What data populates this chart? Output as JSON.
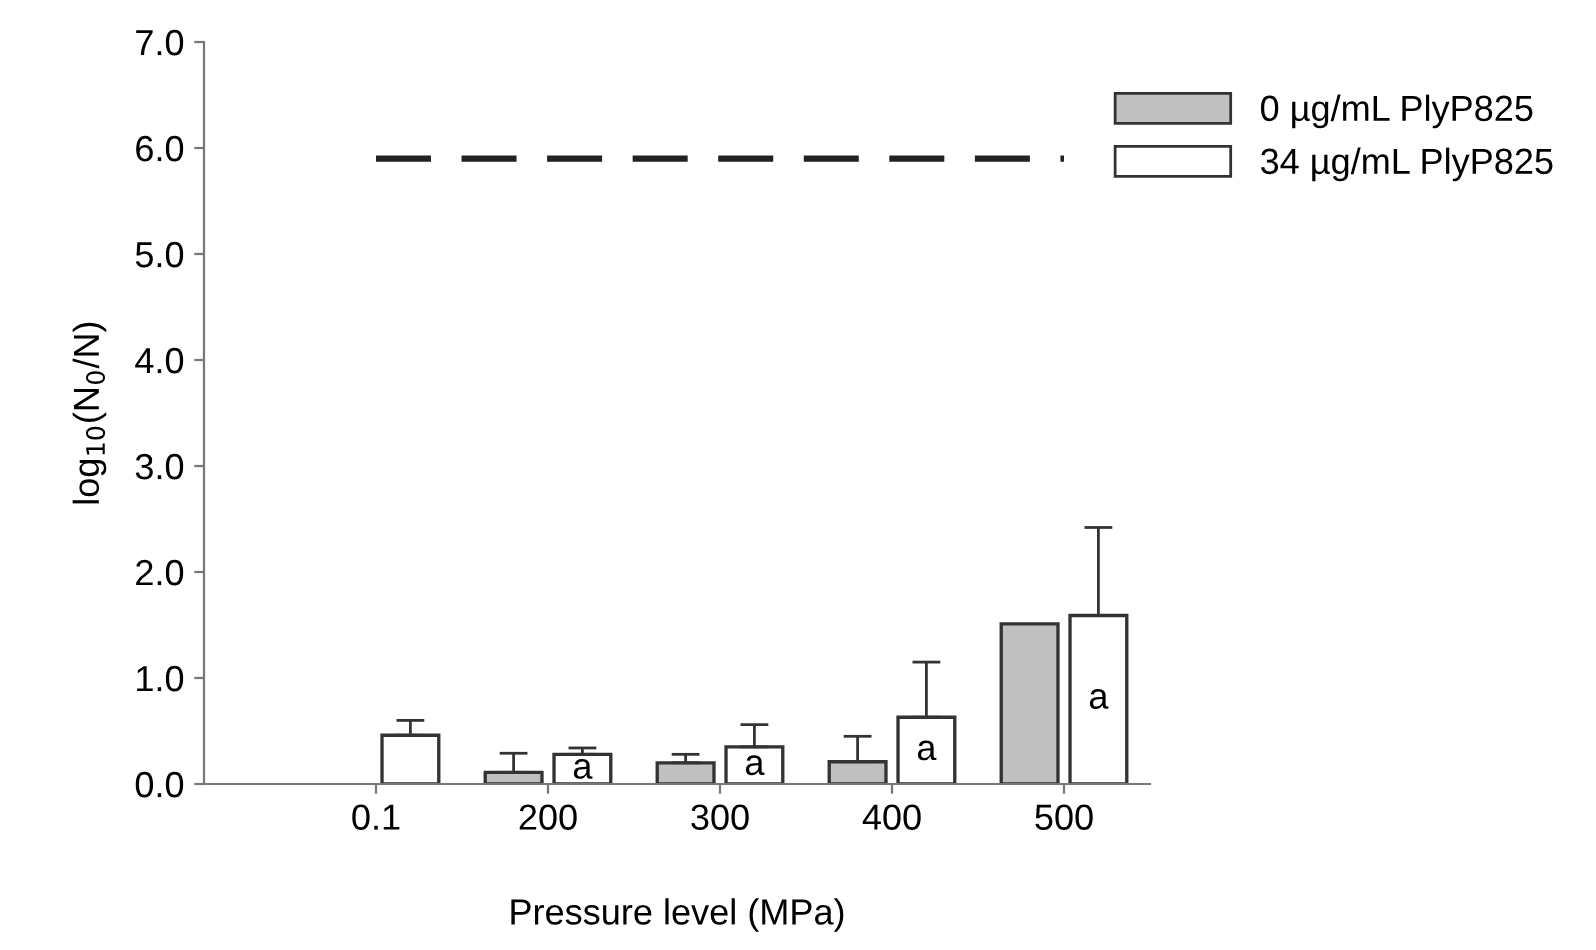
{
  "chart_data": {
    "type": "bar",
    "xlabel": "Pressure level (MPa)",
    "ylabel": "log$_{10}$(N$_{0}$/N)",
    "categories": [
      "0.1",
      "200",
      "300",
      "400",
      "500"
    ],
    "series": [
      {
        "name": "0 µg/mL PlyP825",
        "color": "#c0c0c0",
        "values": [
          null,
          0.11,
          0.2,
          0.21,
          1.51
        ],
        "errors": [
          null,
          [
            0.11,
            0.29
          ],
          [
            0.2,
            0.28
          ],
          [
            0.21,
            0.45
          ],
          null
        ]
      },
      {
        "name": "34 µg/mL PlyP825",
        "color": "#ffffff",
        "values": [
          0.46,
          0.28,
          0.35,
          0.63,
          1.59
        ],
        "errors": [
          [
            0.46,
            0.6
          ],
          [
            0.28,
            0.34
          ],
          [
            0.35,
            0.56
          ],
          [
            0.63,
            1.15
          ],
          [
            1.59,
            2.42
          ]
        ]
      }
    ],
    "ylim": [
      0,
      7
    ],
    "yticks": [
      {
        "value": 0,
        "label": "0.0"
      },
      {
        "value": 1,
        "label": "1.0"
      },
      {
        "value": 2,
        "label": "2.0"
      },
      {
        "value": 3,
        "label": "3.0"
      },
      {
        "value": 4,
        "label": "4.0"
      },
      {
        "value": 5,
        "label": "5.0"
      },
      {
        "value": 6,
        "label": "6.0"
      },
      {
        "value": 7,
        "label": "7.0"
      }
    ],
    "ref_lines": [
      {
        "axis": "y",
        "value": 5.9,
        "color": "#222222",
        "line_style": "dashed"
      }
    ],
    "annotations": [
      {
        "text": "a",
        "x": "200",
        "y": 0.14
      },
      {
        "text": "a",
        "x": "300",
        "y": 0.175
      },
      {
        "text": "a",
        "x": "400",
        "y": 0.315
      },
      {
        "text": "a",
        "x": "500",
        "y": 0.8
      }
    ],
    "grid": false,
    "legend": "top right"
  }
}
